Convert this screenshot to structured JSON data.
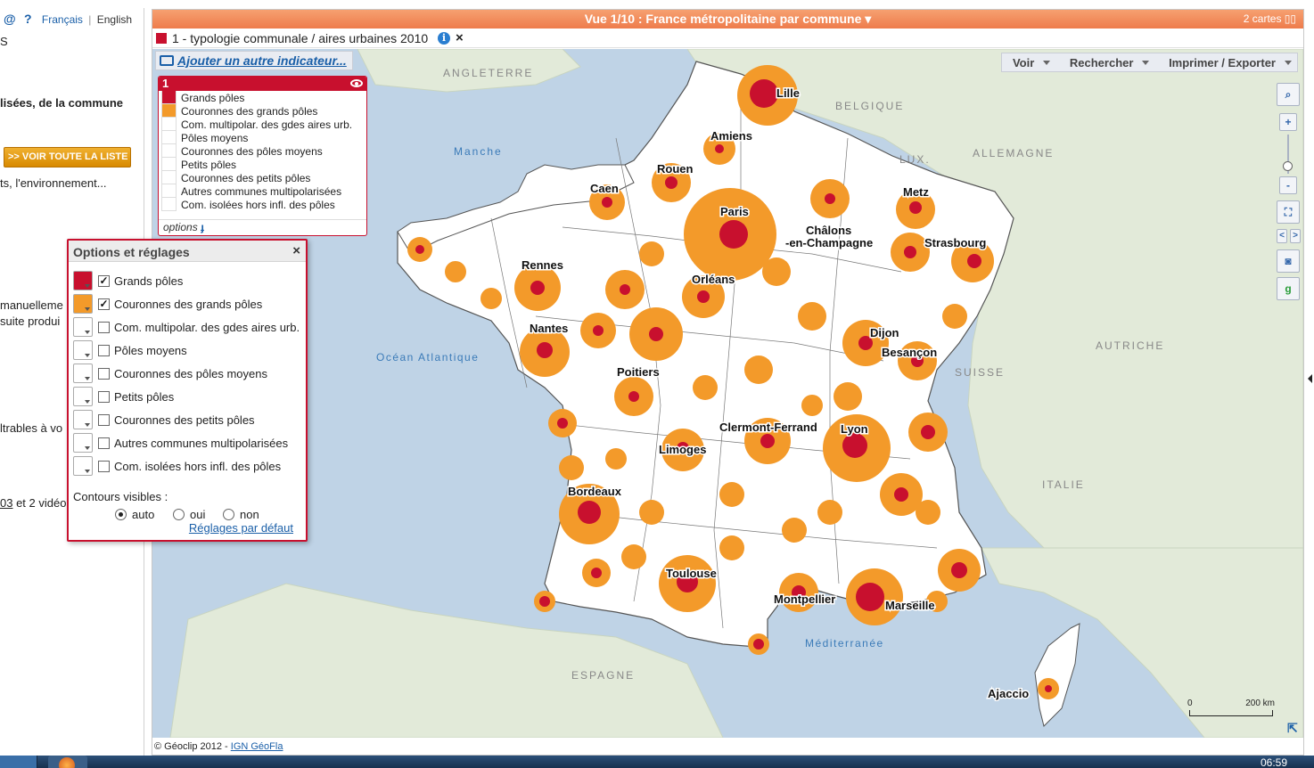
{
  "left_page": {
    "lang_at": "@",
    "lang_help": "?",
    "lang_fr": "Français",
    "lang_sep": "|",
    "lang_en": "English",
    "line_s": "S",
    "line_bold": "lisées, de la commune",
    "voir_liste": ">> VOIR TOUTE LA LISTE",
    "line_env": "ts, l'environnement...",
    "line_manu": "manuelleme",
    "line_suite": "suite produi",
    "line_filtr": "ltrables à vo",
    "line_video_link": "03",
    "line_video_rest": " et 2 vidéo"
  },
  "view_bar": {
    "title": "Vue 1/10 : France métropolitaine par commune ▾",
    "cards": "2 cartes ▯▯"
  },
  "indicator": {
    "label": "1 - typologie communale / aires urbaines 2010",
    "info": "i",
    "close": "×",
    "color": "#c8102e"
  },
  "add_indicator": "Ajouter un autre indicateur...",
  "legend": {
    "number": "1",
    "options": "options",
    "items": [
      {
        "label": "Grands pôles",
        "color": "#c8102e"
      },
      {
        "label": "Couronnes des grands pôles",
        "color": "#f39a2a"
      },
      {
        "label": "Com. multipolar. des gdes aires urb.",
        "color": "#ffffff"
      },
      {
        "label": "Pôles moyens",
        "color": "#ffffff"
      },
      {
        "label": "Couronnes des pôles moyens",
        "color": "#ffffff"
      },
      {
        "label": "Petits pôles",
        "color": "#ffffff"
      },
      {
        "label": "Couronnes des petits pôles",
        "color": "#ffffff"
      },
      {
        "label": "Autres communes multipolarisées",
        "color": "#ffffff"
      },
      {
        "label": "Com. isolées hors infl. des pôles",
        "color": "#ffffff"
      }
    ]
  },
  "toolbar": {
    "voir": "Voir",
    "rechercher": "Rechercher",
    "exporter": "Imprimer / Exporter"
  },
  "zoom": {
    "plus": "+",
    "minus": "-",
    "prev": "<",
    "next": ">"
  },
  "map_labels": {
    "cities": [
      "Lille",
      "Amiens",
      "Rouen",
      "Caen",
      "Paris",
      "Metz",
      "Châlons",
      "-en-Champagne",
      "Strasbourg",
      "Rennes",
      "Orléans",
      "Nantes",
      "Dijon",
      "Besançon",
      "Poitiers",
      "Clermont-Ferrand",
      "Lyon",
      "Limoges",
      "Bordeaux",
      "Toulouse",
      "Montpellier",
      "Marseille",
      "Ajaccio"
    ],
    "countries": [
      "ANGLETERRE",
      "BELGIQUE",
      "LUX.",
      "ALLEMAGNE",
      "SUISSE",
      "AUTRICHE",
      "ITALIE",
      "ESPAGNE"
    ],
    "seas": [
      "Manche",
      "Océan Atlantique",
      "Méditerranée"
    ]
  },
  "scale": {
    "start": "0",
    "end": "200 km"
  },
  "copyright": {
    "text": "© Géoclip 2012 - ",
    "link": "IGN GéoFla"
  },
  "options_panel": {
    "title": "Options et réglages",
    "close": "×",
    "items": [
      {
        "label": "Grands pôles",
        "checked": "✓",
        "color": "#c8102e"
      },
      {
        "label": "Couronnes des grands pôles",
        "checked": "✓",
        "color": "#f39a2a"
      },
      {
        "label": "Com. multipolar. des gdes aires urb.",
        "checked": "",
        "color": "#ffffff"
      },
      {
        "label": "Pôles moyens",
        "checked": "",
        "color": "#ffffff"
      },
      {
        "label": "Couronnes des pôles moyens",
        "checked": "",
        "color": "#ffffff"
      },
      {
        "label": "Petits pôles",
        "checked": "",
        "color": "#ffffff"
      },
      {
        "label": "Couronnes des petits pôles",
        "checked": "",
        "color": "#ffffff"
      },
      {
        "label": "Autres communes multipolarisées",
        "checked": "",
        "color": "#ffffff"
      },
      {
        "label": "Com. isolées hors infl. des pôles",
        "checked": "",
        "color": "#ffffff"
      }
    ],
    "contours_label": "Contours visibles :",
    "radio_auto": "auto",
    "radio_oui": "oui",
    "radio_non": "non",
    "reset": "Réglages par défaut"
  },
  "taskbar": {
    "clock": "06:59"
  }
}
